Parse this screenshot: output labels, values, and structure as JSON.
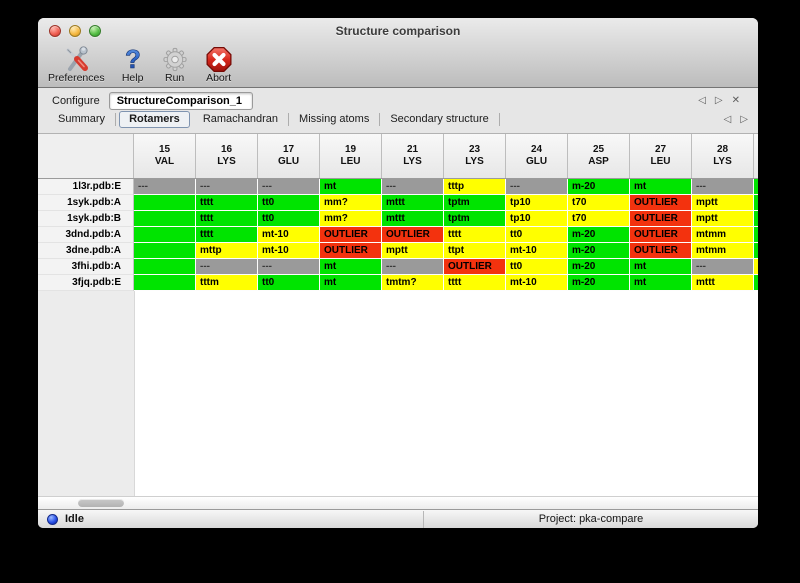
{
  "window": {
    "title": "Structure comparison"
  },
  "toolbar": {
    "items": [
      {
        "label": "Preferences",
        "icon": "tools-icon"
      },
      {
        "label": "Help",
        "icon": "question-mark-icon"
      },
      {
        "label": "Run",
        "icon": "gear-icon"
      },
      {
        "label": "Abort",
        "icon": "stop-x-icon"
      }
    ]
  },
  "configure": {
    "label": "Configure",
    "value": "StructureComparison_1"
  },
  "icons": {
    "prev_arrow": "◁",
    "next_arrow": "▷",
    "close_x": "✕"
  },
  "tabs": {
    "items": [
      "Summary",
      "Rotamers",
      "Ramachandran",
      "Missing atoms",
      "Secondary structure"
    ],
    "selected": "Rotamers"
  },
  "table": {
    "status_colors": {
      "ok": "#00e400",
      "warn": "#ffff00",
      "outlier": "#f3320e",
      "na": "#9a9a9a"
    },
    "columns": [
      {
        "num": "15",
        "res": "VAL"
      },
      {
        "num": "16",
        "res": "LYS"
      },
      {
        "num": "17",
        "res": "GLU"
      },
      {
        "num": "19",
        "res": "LEU"
      },
      {
        "num": "21",
        "res": "LYS"
      },
      {
        "num": "23",
        "res": "LYS"
      },
      {
        "num": "24",
        "res": "GLU"
      },
      {
        "num": "25",
        "res": "ASP"
      },
      {
        "num": "27",
        "res": "LEU"
      },
      {
        "num": "28",
        "res": "LYS"
      }
    ],
    "rows": [
      {
        "label": "1l3r.pdb:E",
        "overflow": "ok",
        "cells": [
          [
            "---",
            "na"
          ],
          [
            "---",
            "na"
          ],
          [
            "---",
            "na"
          ],
          [
            "mt",
            "ok"
          ],
          [
            "---",
            "na"
          ],
          [
            "tttp",
            "warn"
          ],
          [
            "---",
            "na"
          ],
          [
            "m-20",
            "ok"
          ],
          [
            "mt",
            "ok"
          ],
          [
            "---",
            "na"
          ]
        ]
      },
      {
        "label": "1syk.pdb:A",
        "overflow": "ok",
        "cells": [
          [
            "",
            "ok"
          ],
          [
            "tttt",
            "ok"
          ],
          [
            "tt0",
            "ok"
          ],
          [
            "mm?",
            "warn"
          ],
          [
            "mttt",
            "ok"
          ],
          [
            "tptm",
            "ok"
          ],
          [
            "tp10",
            "warn"
          ],
          [
            "t70",
            "warn"
          ],
          [
            "OUTLIER",
            "outlier"
          ],
          [
            "mptt",
            "warn"
          ]
        ]
      },
      {
        "label": "1syk.pdb:B",
        "overflow": "ok",
        "cells": [
          [
            "",
            "ok"
          ],
          [
            "tttt",
            "ok"
          ],
          [
            "tt0",
            "ok"
          ],
          [
            "mm?",
            "warn"
          ],
          [
            "mttt",
            "ok"
          ],
          [
            "tptm",
            "ok"
          ],
          [
            "tp10",
            "warn"
          ],
          [
            "t70",
            "warn"
          ],
          [
            "OUTLIER",
            "outlier"
          ],
          [
            "mptt",
            "warn"
          ]
        ]
      },
      {
        "label": "3dnd.pdb:A",
        "overflow": "ok",
        "cells": [
          [
            "",
            "ok"
          ],
          [
            "tttt",
            "ok"
          ],
          [
            "mt-10",
            "warn"
          ],
          [
            "OUTLIER",
            "outlier"
          ],
          [
            "OUTLIER",
            "outlier"
          ],
          [
            "tttt",
            "warn"
          ],
          [
            "tt0",
            "warn"
          ],
          [
            "m-20",
            "ok"
          ],
          [
            "OUTLIER",
            "outlier"
          ],
          [
            "mtmm",
            "warn"
          ]
        ]
      },
      {
        "label": "3dne.pdb:A",
        "overflow": "ok",
        "cells": [
          [
            "",
            "ok"
          ],
          [
            "mttp",
            "warn"
          ],
          [
            "mt-10",
            "warn"
          ],
          [
            "OUTLIER",
            "outlier"
          ],
          [
            "mptt",
            "warn"
          ],
          [
            "ttpt",
            "warn"
          ],
          [
            "mt-10",
            "warn"
          ],
          [
            "m-20",
            "ok"
          ],
          [
            "OUTLIER",
            "outlier"
          ],
          [
            "mtmm",
            "warn"
          ]
        ]
      },
      {
        "label": "3fhi.pdb:A",
        "overflow": "warn",
        "cells": [
          [
            "",
            "ok"
          ],
          [
            "---",
            "na"
          ],
          [
            "---",
            "na"
          ],
          [
            "mt",
            "ok"
          ],
          [
            "---",
            "na"
          ],
          [
            "OUTLIER",
            "outlier"
          ],
          [
            "tt0",
            "warn"
          ],
          [
            "m-20",
            "ok"
          ],
          [
            "mt",
            "ok"
          ],
          [
            "---",
            "na"
          ]
        ]
      },
      {
        "label": "3fjq.pdb:E",
        "overflow": "ok",
        "cells": [
          [
            "",
            "ok"
          ],
          [
            "tttm",
            "warn"
          ],
          [
            "tt0",
            "ok"
          ],
          [
            "mt",
            "ok"
          ],
          [
            "tmtm?",
            "warn"
          ],
          [
            "tttt",
            "warn"
          ],
          [
            "mt-10",
            "warn"
          ],
          [
            "m-20",
            "ok"
          ],
          [
            "mt",
            "ok"
          ],
          [
            "mttt",
            "warn"
          ]
        ]
      }
    ]
  },
  "statusbar": {
    "status_text": "Idle",
    "project_text": "Project: pka-compare"
  }
}
